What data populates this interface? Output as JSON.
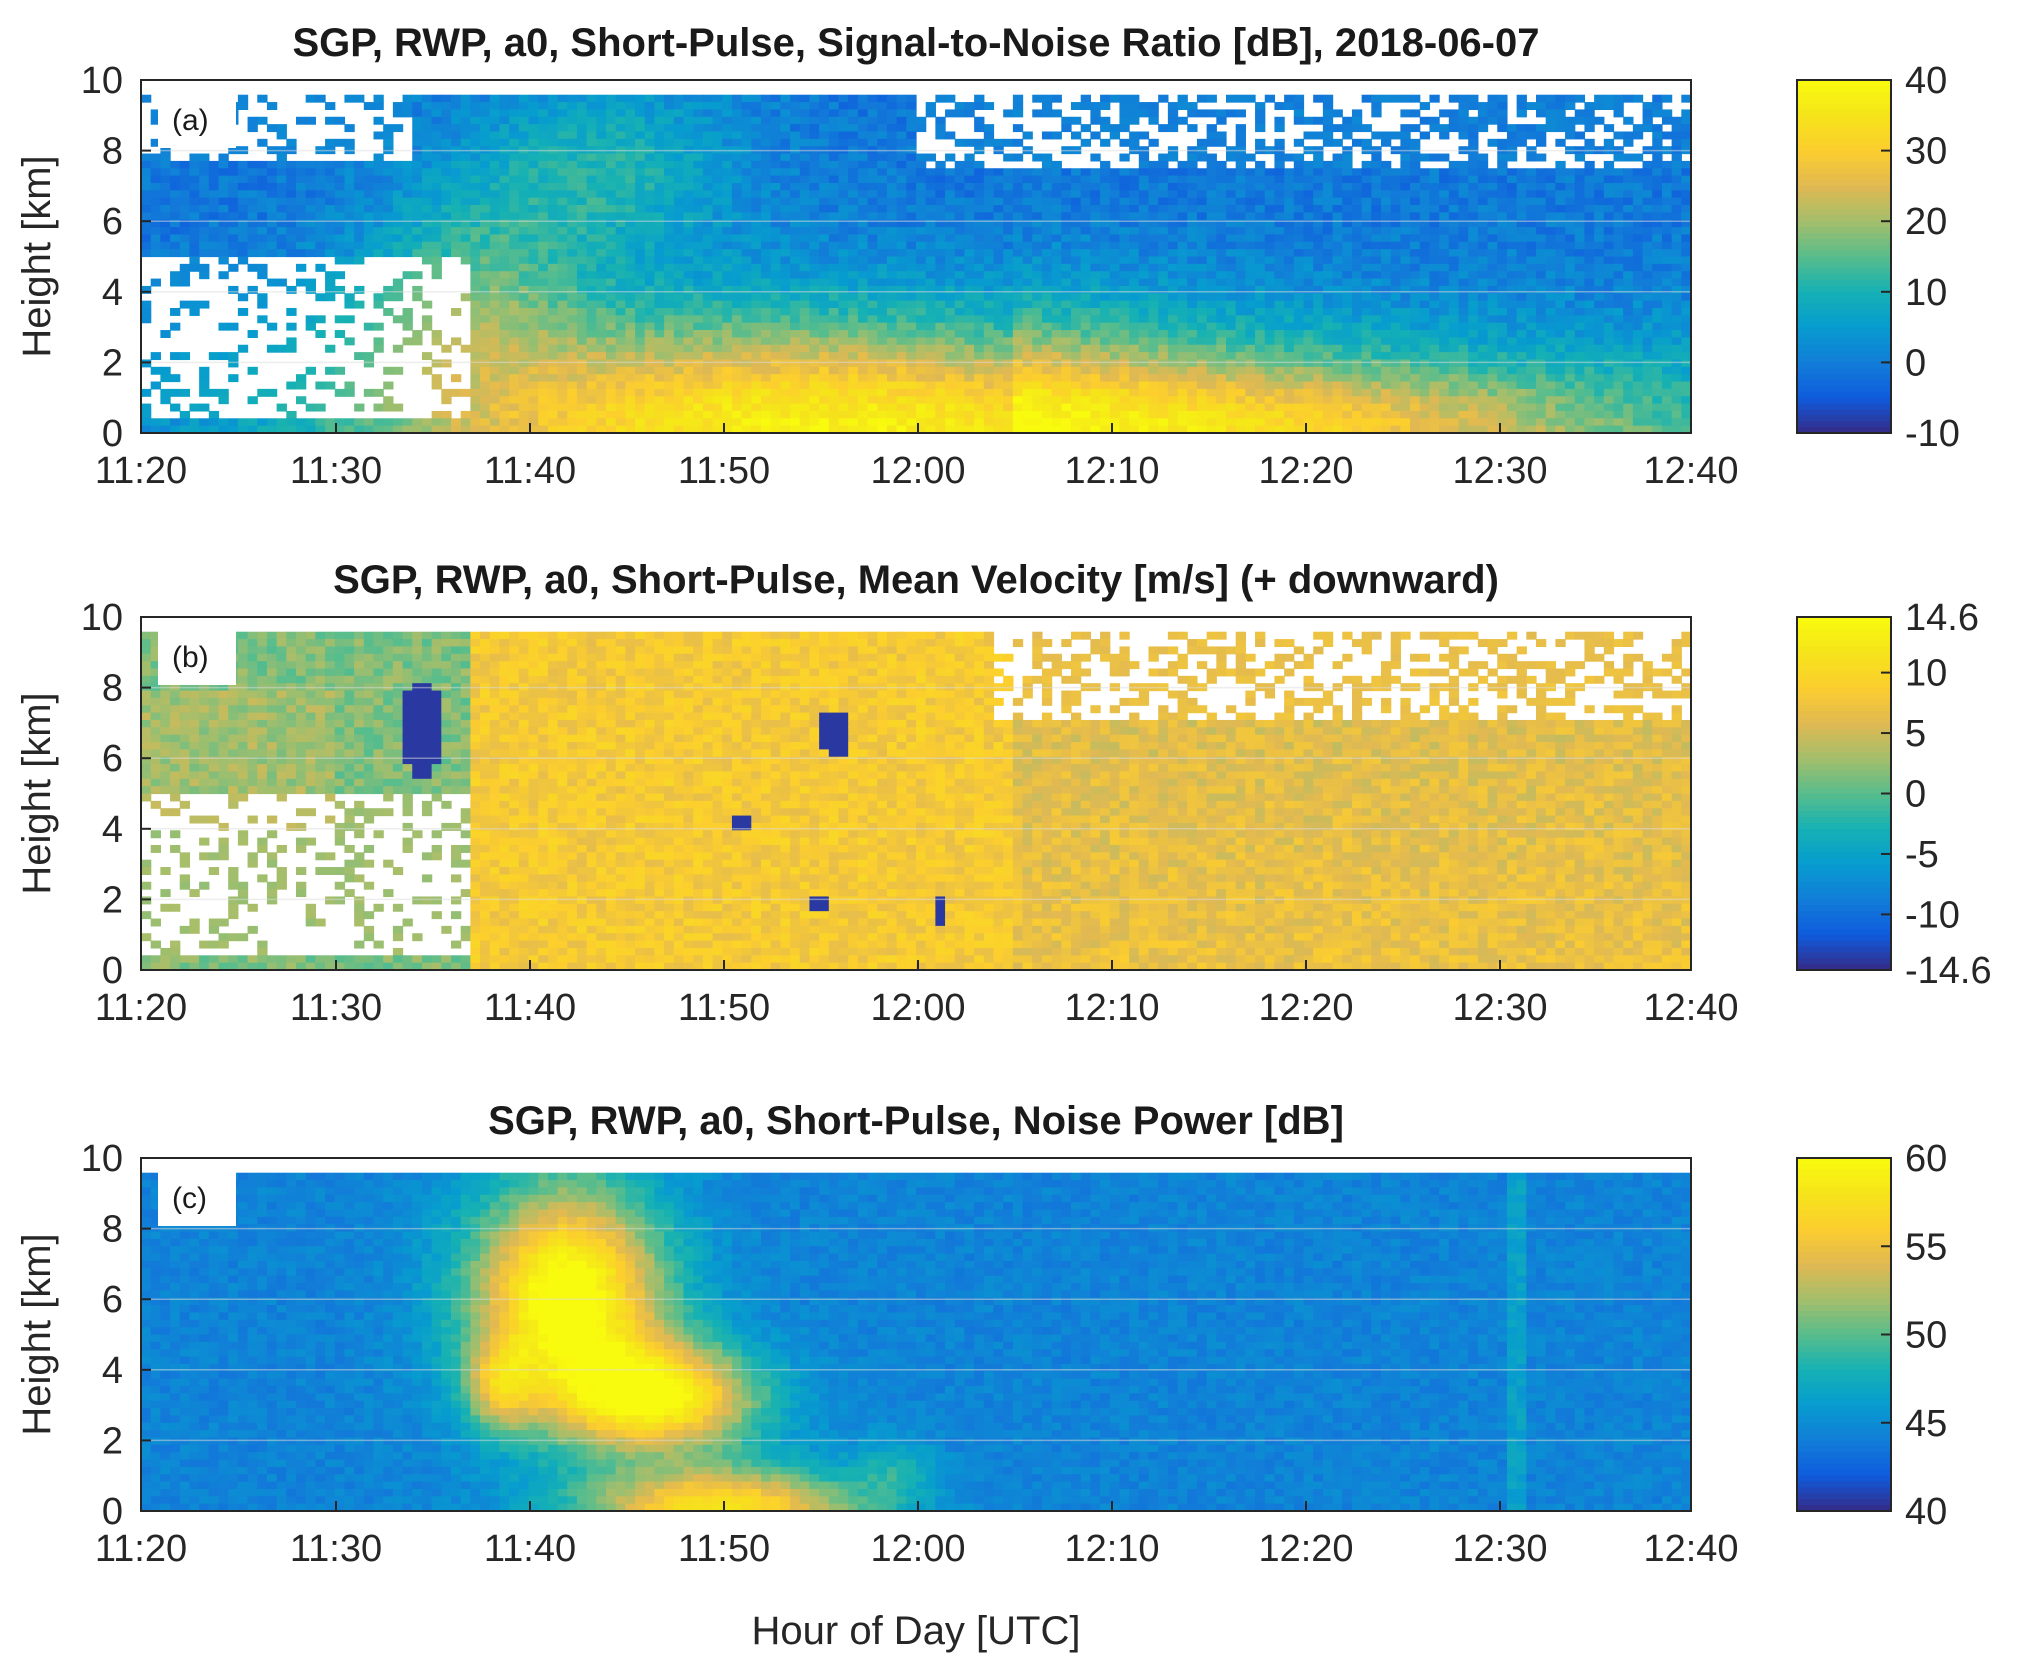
{
  "figure": {
    "xlabel": "Hour of Day [UTC]",
    "colormap": "parula"
  },
  "chart_data": [
    {
      "type": "heatmap",
      "panel_label": "(a)",
      "title": "SGP, RWP, a0, Short-Pulse, Signal-to-Noise Ratio [dB], 2018-06-07",
      "xlabel": "",
      "ylabel": "Height [km]",
      "x_ticks": [
        "11:20",
        "11:30",
        "11:40",
        "11:50",
        "12:00",
        "12:10",
        "12:20",
        "12:30",
        "12:40"
      ],
      "y_ticks": [
        "0",
        "2",
        "4",
        "6",
        "8",
        "10"
      ],
      "ylim": [
        0,
        10
      ],
      "colorbar": {
        "ticks": [
          "40",
          "30",
          "20",
          "10",
          "0",
          "-10"
        ],
        "clim": [
          -10,
          40
        ]
      },
      "field": "snr"
    },
    {
      "type": "heatmap",
      "panel_label": "(b)",
      "title": "SGP, RWP, a0, Short-Pulse, Mean Velocity [m/s] (+ downward)",
      "xlabel": "",
      "ylabel": "Height [km]",
      "x_ticks": [
        "11:20",
        "11:30",
        "11:40",
        "11:50",
        "12:00",
        "12:10",
        "12:20",
        "12:30",
        "12:40"
      ],
      "y_ticks": [
        "0",
        "2",
        "4",
        "6",
        "8",
        "10"
      ],
      "ylim": [
        0,
        10
      ],
      "colorbar": {
        "ticks": [
          "14.6",
          "10",
          "5",
          "0",
          "-5",
          "-10",
          "-14.6"
        ],
        "clim": [
          -14.6,
          14.6
        ]
      },
      "field": "velocity"
    },
    {
      "type": "heatmap",
      "panel_label": "(c)",
      "title": "SGP, RWP, a0, Short-Pulse, Noise Power [dB]",
      "xlabel": "Hour of Day [UTC]",
      "ylabel": "Height [km]",
      "x_ticks": [
        "11:20",
        "11:30",
        "11:40",
        "11:50",
        "12:00",
        "12:10",
        "12:20",
        "12:30",
        "12:40"
      ],
      "y_ticks": [
        "0",
        "2",
        "4",
        "6",
        "8",
        "10"
      ],
      "ylim": [
        0,
        10
      ],
      "colorbar": {
        "ticks": [
          "60",
          "55",
          "50",
          "45",
          "40"
        ],
        "clim": [
          40,
          60
        ]
      },
      "field": "noise"
    }
  ]
}
